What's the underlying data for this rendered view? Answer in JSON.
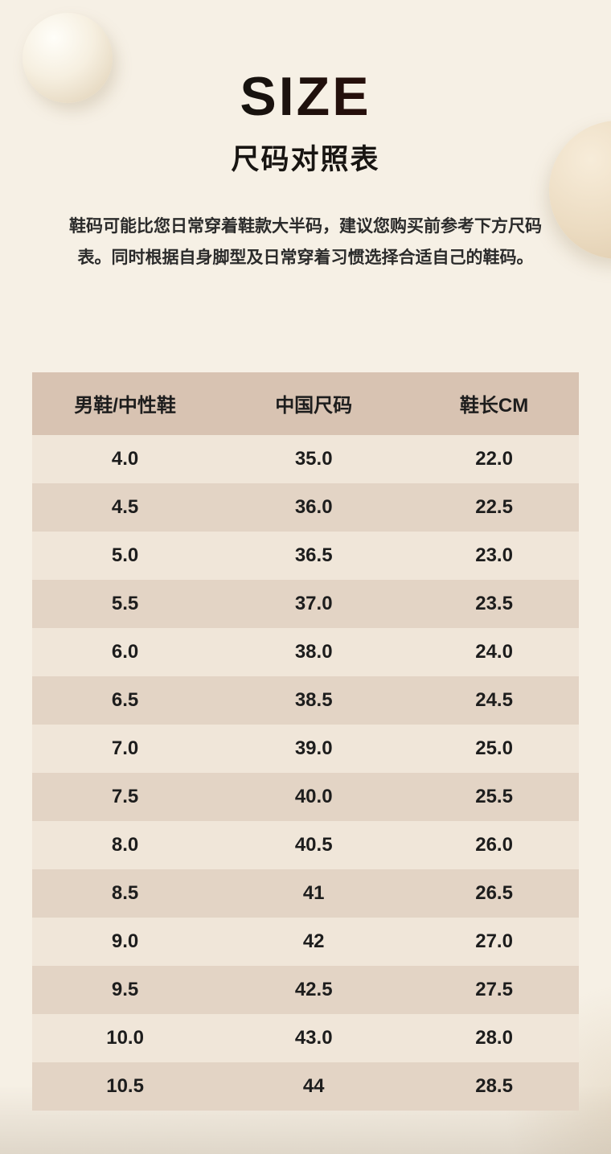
{
  "page": {
    "title": "SIZE",
    "subtitle": "尺码对照表",
    "description": "鞋码可能比您日常穿着鞋款大半码，建议您购买前参考下方尺码表。同时根据自身脚型及日常穿着习惯选择合适自己的鞋码。"
  },
  "colors": {
    "background": "#f6f0e5",
    "header_row": "#d8c3b2",
    "row_light": "#f0e6d9",
    "row_dark": "#e3d4c5",
    "title_accent": "#7a160e",
    "text": "#1d1d1d"
  },
  "table": {
    "columns": [
      "男鞋/中性鞋",
      "中国尺码",
      "鞋长CM"
    ],
    "rows": [
      [
        "4.0",
        "35.0",
        "22.0"
      ],
      [
        "4.5",
        "36.0",
        "22.5"
      ],
      [
        "5.0",
        "36.5",
        "23.0"
      ],
      [
        "5.5",
        "37.0",
        "23.5"
      ],
      [
        "6.0",
        "38.0",
        "24.0"
      ],
      [
        "6.5",
        "38.5",
        "24.5"
      ],
      [
        "7.0",
        "39.0",
        "25.0"
      ],
      [
        "7.5",
        "40.0",
        "25.5"
      ],
      [
        "8.0",
        "40.5",
        "26.0"
      ],
      [
        "8.5",
        "41",
        "26.5"
      ],
      [
        "9.0",
        "42",
        "27.0"
      ],
      [
        "9.5",
        "42.5",
        "27.5"
      ],
      [
        "10.0",
        "43.0",
        "28.0"
      ],
      [
        "10.5",
        "44",
        "28.5"
      ]
    ]
  }
}
